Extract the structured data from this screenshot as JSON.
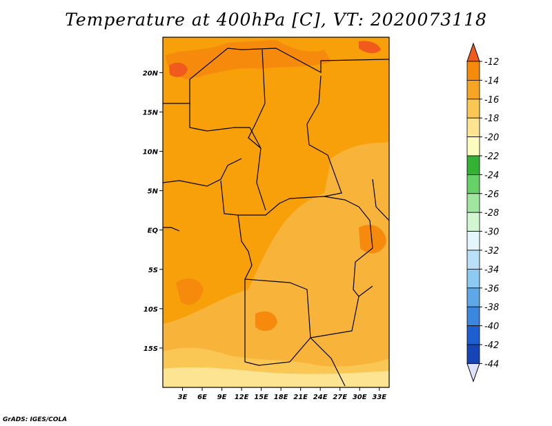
{
  "title": "Temperature at 400hPa [C], VT: 2020073118",
  "credit": "GrADS: IGES/COLA",
  "map": {
    "lon_labels": [
      "3E",
      "6E",
      "9E",
      "12E",
      "15E",
      "18E",
      "21E",
      "24E",
      "27E",
      "30E",
      "33E"
    ],
    "lat_labels": [
      "20N",
      "15N",
      "10N",
      "5N",
      "EQ",
      "5S",
      "10S",
      "15S"
    ],
    "lon_range": [
      0,
      34.5
    ],
    "lat_range": [
      -20,
      24.5
    ]
  },
  "colorbar": {
    "levels": [
      "-12",
      "-14",
      "-16",
      "-18",
      "-20",
      "-22",
      "-24",
      "-26",
      "-28",
      "-30",
      "-32",
      "-34",
      "-36",
      "-38",
      "-40",
      "-42",
      "-44"
    ],
    "colors": [
      "#f05a1c",
      "#f58a0c",
      "#f7a524",
      "#fbc754",
      "#fde492",
      "#fcfcbf",
      "#33b233",
      "#66d166",
      "#a0e6a0",
      "#d2f5d2",
      "#e2f6fc",
      "#bae0f7",
      "#8dcaf2",
      "#5ea8e8",
      "#3b86de",
      "#1f5ed1",
      "#1646b5",
      "#0e1e7a"
    ],
    "top_color": "#f05a1c",
    "bottom_color": "#dfe0fb"
  }
}
